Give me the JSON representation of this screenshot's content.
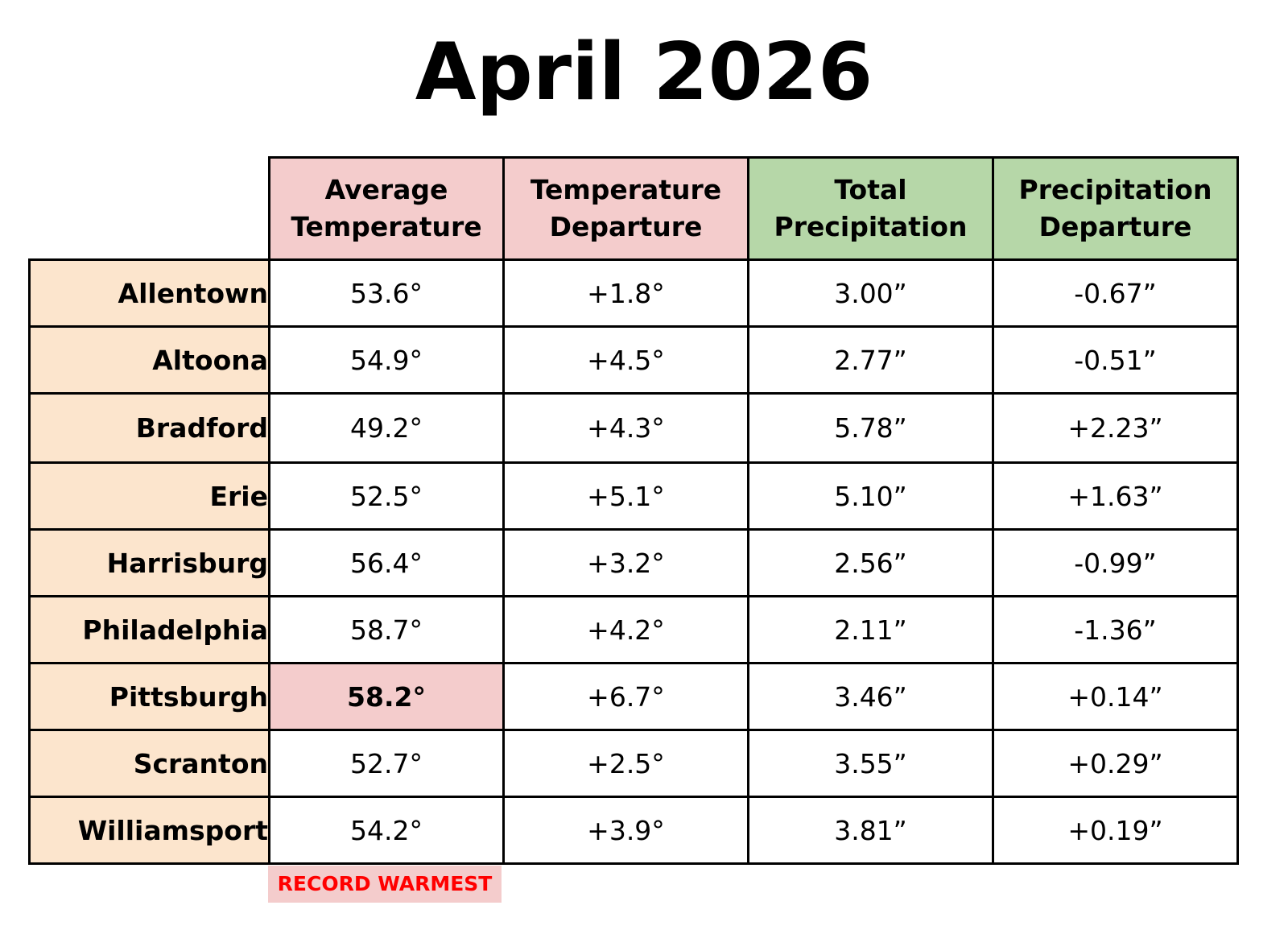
{
  "title": "April 2026",
  "headers": {
    "avg_temp": [
      "Average",
      "Temperature"
    ],
    "temp_dep": [
      "Temperature",
      "Departure"
    ],
    "total_precip": [
      "Total",
      "Precipitation"
    ],
    "precip_dep": [
      "Precipitation",
      "Departure"
    ]
  },
  "colors": {
    "temp_header_bg": "#f4cccc",
    "precip_header_bg": "#b6d7a8",
    "city_bg": "#fce5cd",
    "temp_departure": "#ff0000",
    "precip_negative": "#e69138",
    "precip_positive": "#6aa84f",
    "record_bg": "#f4cccc"
  },
  "rows": [
    {
      "city": "Allentown",
      "avg_temp": "53.6°",
      "temp_dep": "+1.8°",
      "total_precip": "3.00”",
      "precip_dep": "-0.67”",
      "precip_sign": "neg",
      "record": false
    },
    {
      "city": "Altoona",
      "avg_temp": "54.9°",
      "temp_dep": "+4.5°",
      "total_precip": "2.77”",
      "precip_dep": "-0.51”",
      "precip_sign": "neg",
      "record": false
    },
    {
      "city": "Bradford",
      "avg_temp": "49.2°",
      "temp_dep": "+4.3°",
      "total_precip": "5.78”",
      "precip_dep": "+2.23”",
      "precip_sign": "pos",
      "record": false
    },
    {
      "city": "Erie",
      "avg_temp": "52.5°",
      "temp_dep": "+5.1°",
      "total_precip": "5.10”",
      "precip_dep": "+1.63”",
      "precip_sign": "pos",
      "record": false
    },
    {
      "city": "Harrisburg",
      "avg_temp": "56.4°",
      "temp_dep": "+3.2°",
      "total_precip": "2.56”",
      "precip_dep": "-0.99”",
      "precip_sign": "neg",
      "record": false
    },
    {
      "city": "Philadelphia",
      "avg_temp": "58.7°",
      "temp_dep": "+4.2°",
      "total_precip": "2.11”",
      "precip_dep": "-1.36”",
      "precip_sign": "neg",
      "record": false
    },
    {
      "city": "Pittsburgh",
      "avg_temp": "58.2°",
      "temp_dep": "+6.7°",
      "total_precip": "3.46”",
      "precip_dep": "+0.14”",
      "precip_sign": "pos",
      "record": true
    },
    {
      "city": "Scranton",
      "avg_temp": "52.7°",
      "temp_dep": "+2.5°",
      "total_precip": "3.55”",
      "precip_dep": "+0.29”",
      "precip_sign": "pos",
      "record": false
    },
    {
      "city": "Williamsport",
      "avg_temp": "54.2°",
      "temp_dep": "+3.9°",
      "total_precip": "3.81”",
      "precip_dep": "+0.19”",
      "precip_sign": "pos",
      "record": false
    }
  ],
  "record_label": "RECORD WARMEST"
}
